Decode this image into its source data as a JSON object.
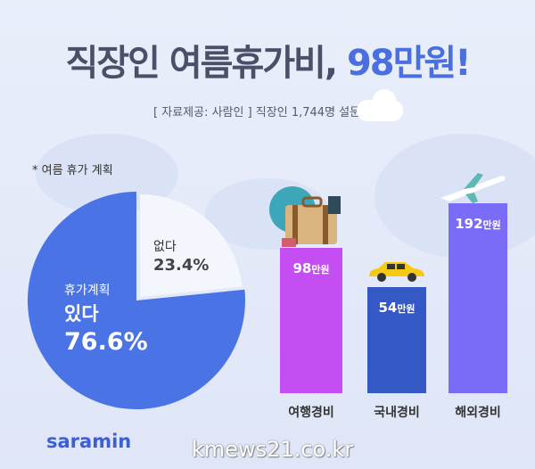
{
  "title": {
    "main": "직장인 여름휴가비, ",
    "highlight": "98만원!"
  },
  "subtitle": "[ 자료제공: 사람인 ] 직장인 1,744명 설문조사",
  "pie_note": "* 여름 휴가 계획",
  "logo": "saramin",
  "watermark": "kmews21.co.kr",
  "colors": {
    "yes": "#4a74e6",
    "no": "#f3f6fd",
    "travel": "#c44ef2",
    "domestic": "#3559c4",
    "overseas": "#7a6cf6"
  },
  "chart_data": [
    {
      "type": "pie",
      "title": "* 여름 휴가 계획",
      "slices": [
        {
          "label_top": "휴가계획",
          "label": "있다",
          "value": 76.6,
          "display": "76.6%"
        },
        {
          "label": "없다",
          "value": 23.4,
          "display": "23.4%"
        }
      ]
    },
    {
      "type": "bar",
      "categories": [
        "여행경비",
        "국내경비",
        "해외경비"
      ],
      "values": [
        98,
        54,
        192
      ],
      "value_labels": [
        {
          "num": "98",
          "unit": "만원"
        },
        {
          "num": "54",
          "unit": "만원"
        },
        {
          "num": "192",
          "unit": "만원"
        }
      ],
      "unit": "만원"
    }
  ]
}
